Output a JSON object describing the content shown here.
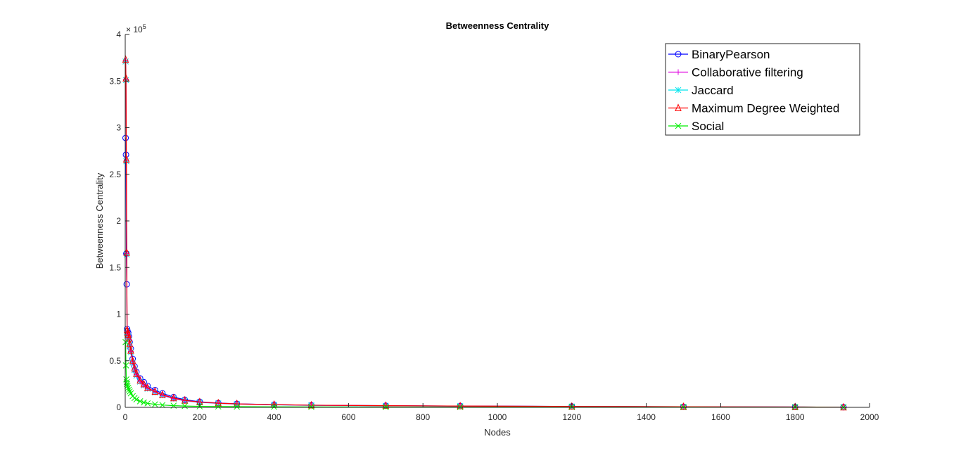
{
  "chart_data": {
    "type": "line",
    "title": "Betweenness Centrality",
    "xlabel": "Nodes",
    "ylabel": "Betweenness Centrality",
    "exponent_label": "× 10^5",
    "xlim": [
      0,
      2000
    ],
    "ylim": [
      0,
      400000
    ],
    "xticks": [
      0,
      200,
      400,
      600,
      800,
      1000,
      1200,
      1400,
      1600,
      1800,
      2000
    ],
    "yticks": [
      0,
      50000,
      100000,
      150000,
      200000,
      250000,
      300000,
      350000,
      400000
    ],
    "xtick_labels": [
      "0",
      "200",
      "400",
      "600",
      "800",
      "1000",
      "1200",
      "1400",
      "1600",
      "1800",
      "2000"
    ],
    "ytick_labels": [
      "0",
      "0.5",
      "1",
      "1.5",
      "2",
      "2.5",
      "3",
      "3.5",
      "4"
    ],
    "grid": false,
    "legend_position": "top-right",
    "series": [
      {
        "name": "BinaryPearson",
        "color": "#0000ff",
        "marker": "circle",
        "x": [
          1,
          2,
          3,
          4,
          5,
          6,
          8,
          10,
          12,
          15,
          20,
          25,
          30,
          40,
          50,
          60,
          80,
          100,
          130,
          160,
          200,
          250,
          300,
          400,
          500,
          700,
          900,
          1200,
          1500,
          1800,
          1930
        ],
        "y": [
          289000,
          271000,
          165000,
          132000,
          84000,
          82000,
          80000,
          76000,
          70000,
          63000,
          52000,
          44000,
          38000,
          31000,
          27000,
          23000,
          18500,
          15000,
          11000,
          8200,
          6000,
          4600,
          3800,
          2900,
          2300,
          1800,
          1400,
          1000,
          700,
          400,
          150
        ]
      },
      {
        "name": "Collaborative filtering",
        "color": "#e000e0",
        "marker": "plus",
        "x": [
          1,
          2,
          3,
          4,
          5,
          6,
          8,
          10,
          12,
          15,
          20,
          25,
          30,
          40,
          50,
          60,
          80,
          100,
          130,
          160,
          200,
          250,
          300,
          400,
          500,
          700,
          900,
          1200,
          1500,
          1800,
          1930
        ],
        "y": [
          372000,
          352000,
          265000,
          165000,
          82000,
          79000,
          77000,
          73000,
          67000,
          60000,
          49000,
          41000,
          35000,
          28000,
          24000,
          20500,
          16500,
          13000,
          9500,
          7200,
          5500,
          4300,
          3600,
          2800,
          2200,
          1700,
          1300,
          900,
          600,
          350,
          120
        ]
      },
      {
        "name": "Jaccard",
        "color": "#00e5ee",
        "marker": "star",
        "x": [
          1,
          2,
          3,
          4,
          5,
          6,
          8,
          10,
          12,
          15,
          20,
          25,
          30,
          40,
          50,
          60,
          80,
          100,
          130,
          160,
          200,
          250,
          300,
          400,
          500,
          700,
          900,
          1200,
          1500,
          1800,
          1930
        ],
        "y": [
          371000,
          351000,
          264000,
          164000,
          81000,
          78000,
          76000,
          72000,
          66000,
          59000,
          48000,
          40000,
          34000,
          27500,
          23500,
          20000,
          16000,
          12800,
          9300,
          7000,
          5400,
          4200,
          3500,
          2700,
          2100,
          1650,
          1250,
          880,
          580,
          330,
          110
        ]
      },
      {
        "name": "Maximum Degree Weighted",
        "color": "#ff0000",
        "marker": "triangle",
        "x": [
          1,
          2,
          3,
          4,
          5,
          6,
          8,
          10,
          12,
          15,
          20,
          25,
          30,
          40,
          50,
          60,
          80,
          100,
          130,
          160,
          200,
          250,
          300,
          400,
          500,
          700,
          900,
          1200,
          1500,
          1800,
          1930
        ],
        "y": [
          373000,
          353000,
          266000,
          166000,
          83000,
          80000,
          78000,
          74000,
          68000,
          61000,
          50000,
          42000,
          36000,
          29000,
          25000,
          21000,
          17000,
          13500,
          10000,
          7500,
          5700,
          4500,
          3700,
          2900,
          2300,
          1800,
          1400,
          1000,
          700,
          400,
          150
        ]
      },
      {
        "name": "Social",
        "color": "#00ee00",
        "marker": "x",
        "x": [
          1,
          2,
          3,
          4,
          5,
          6,
          8,
          10,
          12,
          15,
          20,
          25,
          30,
          40,
          50,
          60,
          80,
          100,
          130,
          160,
          200,
          250,
          300,
          400,
          500,
          700,
          900,
          1200,
          1500,
          1800,
          1930
        ],
        "y": [
          70000,
          45000,
          30000,
          27000,
          25000,
          23000,
          21000,
          19000,
          17000,
          15000,
          12000,
          10000,
          8500,
          6500,
          5200,
          4300,
          3200,
          2500,
          1800,
          1400,
          1100,
          900,
          750,
          600,
          500,
          400,
          320,
          240,
          170,
          100,
          40
        ]
      }
    ]
  }
}
